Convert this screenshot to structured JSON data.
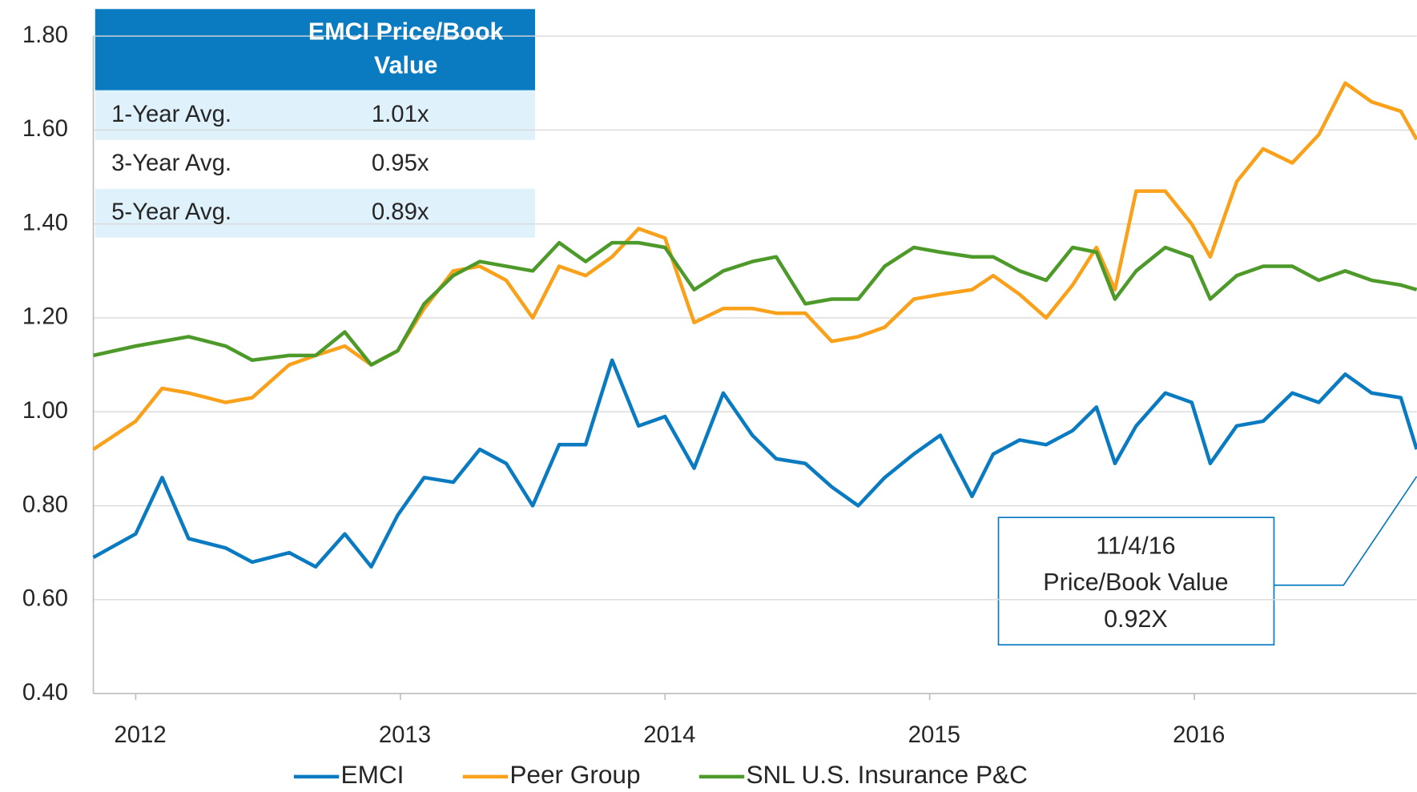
{
  "chart_data": {
    "type": "line",
    "x": [
      2011.84,
      2012.0,
      2012.1,
      2012.2,
      2012.34,
      2012.44,
      2012.58,
      2012.68,
      2012.79,
      2012.89,
      2012.99,
      2013.09,
      2013.2,
      2013.3,
      2013.4,
      2013.5,
      2013.6,
      2013.7,
      2013.8,
      2013.9,
      2014.0,
      2014.11,
      2014.22,
      2014.33,
      2014.42,
      2014.53,
      2014.63,
      2014.73,
      2014.83,
      2014.94,
      2015.04,
      2015.16,
      2015.24,
      2015.34,
      2015.44,
      2015.54,
      2015.63,
      2015.7,
      2015.78,
      2015.89,
      2015.99,
      2016.06,
      2016.16,
      2016.26,
      2016.37,
      2016.47,
      2016.57,
      2016.67,
      2016.78,
      2016.84
    ],
    "series": [
      {
        "name": "EMCI",
        "color": "#0a7bc1",
        "values": [
          0.69,
          0.74,
          0.86,
          0.73,
          0.71,
          0.68,
          0.7,
          0.67,
          0.74,
          0.67,
          0.78,
          0.86,
          0.85,
          0.92,
          0.89,
          0.8,
          0.93,
          0.93,
          1.11,
          0.97,
          0.99,
          0.88,
          1.04,
          0.95,
          0.9,
          0.89,
          0.84,
          0.8,
          0.86,
          0.91,
          0.95,
          0.82,
          0.91,
          0.94,
          0.93,
          0.96,
          1.01,
          0.89,
          0.97,
          1.04,
          1.02,
          0.89,
          0.97,
          0.98,
          1.04,
          1.02,
          1.08,
          1.04,
          1.03,
          0.92
        ]
      },
      {
        "name": "Peer Group",
        "color": "#f9a11b",
        "values": [
          0.92,
          0.98,
          1.05,
          1.04,
          1.02,
          1.03,
          1.1,
          1.12,
          1.14,
          1.1,
          1.13,
          1.22,
          1.3,
          1.31,
          1.28,
          1.2,
          1.31,
          1.29,
          1.33,
          1.39,
          1.37,
          1.19,
          1.22,
          1.22,
          1.21,
          1.21,
          1.15,
          1.16,
          1.18,
          1.24,
          1.25,
          1.26,
          1.29,
          1.25,
          1.2,
          1.27,
          1.35,
          1.26,
          1.47,
          1.47,
          1.4,
          1.33,
          1.49,
          1.56,
          1.53,
          1.59,
          1.7,
          1.66,
          1.64,
          1.58
        ]
      },
      {
        "name": "SNL U.S. Insurance P&C",
        "color": "#4d9a2a",
        "values": [
          1.12,
          1.14,
          1.15,
          1.16,
          1.14,
          1.11,
          1.12,
          1.12,
          1.17,
          1.1,
          1.13,
          1.23,
          1.29,
          1.32,
          1.31,
          1.3,
          1.36,
          1.32,
          1.36,
          1.36,
          1.35,
          1.26,
          1.3,
          1.32,
          1.33,
          1.23,
          1.24,
          1.24,
          1.31,
          1.35,
          1.34,
          1.33,
          1.33,
          1.3,
          1.28,
          1.35,
          1.34,
          1.24,
          1.3,
          1.35,
          1.33,
          1.24,
          1.29,
          1.31,
          1.31,
          1.28,
          1.3,
          1.28,
          1.27,
          1.26
        ]
      }
    ],
    "xlim": [
      2011.84,
      2016.84
    ],
    "xticks": [
      2012,
      2013,
      2014,
      2015,
      2016
    ],
    "ylim": [
      0.4,
      1.8
    ],
    "yticks": [
      {
        "value": 0.4,
        "label": "0.40"
      },
      {
        "value": 0.6,
        "label": "0.60"
      },
      {
        "value": 0.8,
        "label": "0.80"
      },
      {
        "value": 1.0,
        "label": "1.00"
      },
      {
        "value": 1.2,
        "label": "1.20"
      },
      {
        "value": 1.4,
        "label": "1.40"
      },
      {
        "value": 1.6,
        "label": "1.60"
      },
      {
        "value": 1.8,
        "label": "1.80"
      }
    ],
    "grid": true,
    "legend": "bottom",
    "table": {
      "title": "EMCI Price/Book Value",
      "rows": [
        [
          "1-Year Avg.",
          "1.01x"
        ],
        [
          "3-Year Avg.",
          "0.95x"
        ],
        [
          "5-Year Avg.",
          "0.89x"
        ]
      ]
    },
    "annotation": {
      "lines": [
        "11/4/16",
        "Price/Book Value",
        "0.92X"
      ]
    }
  }
}
